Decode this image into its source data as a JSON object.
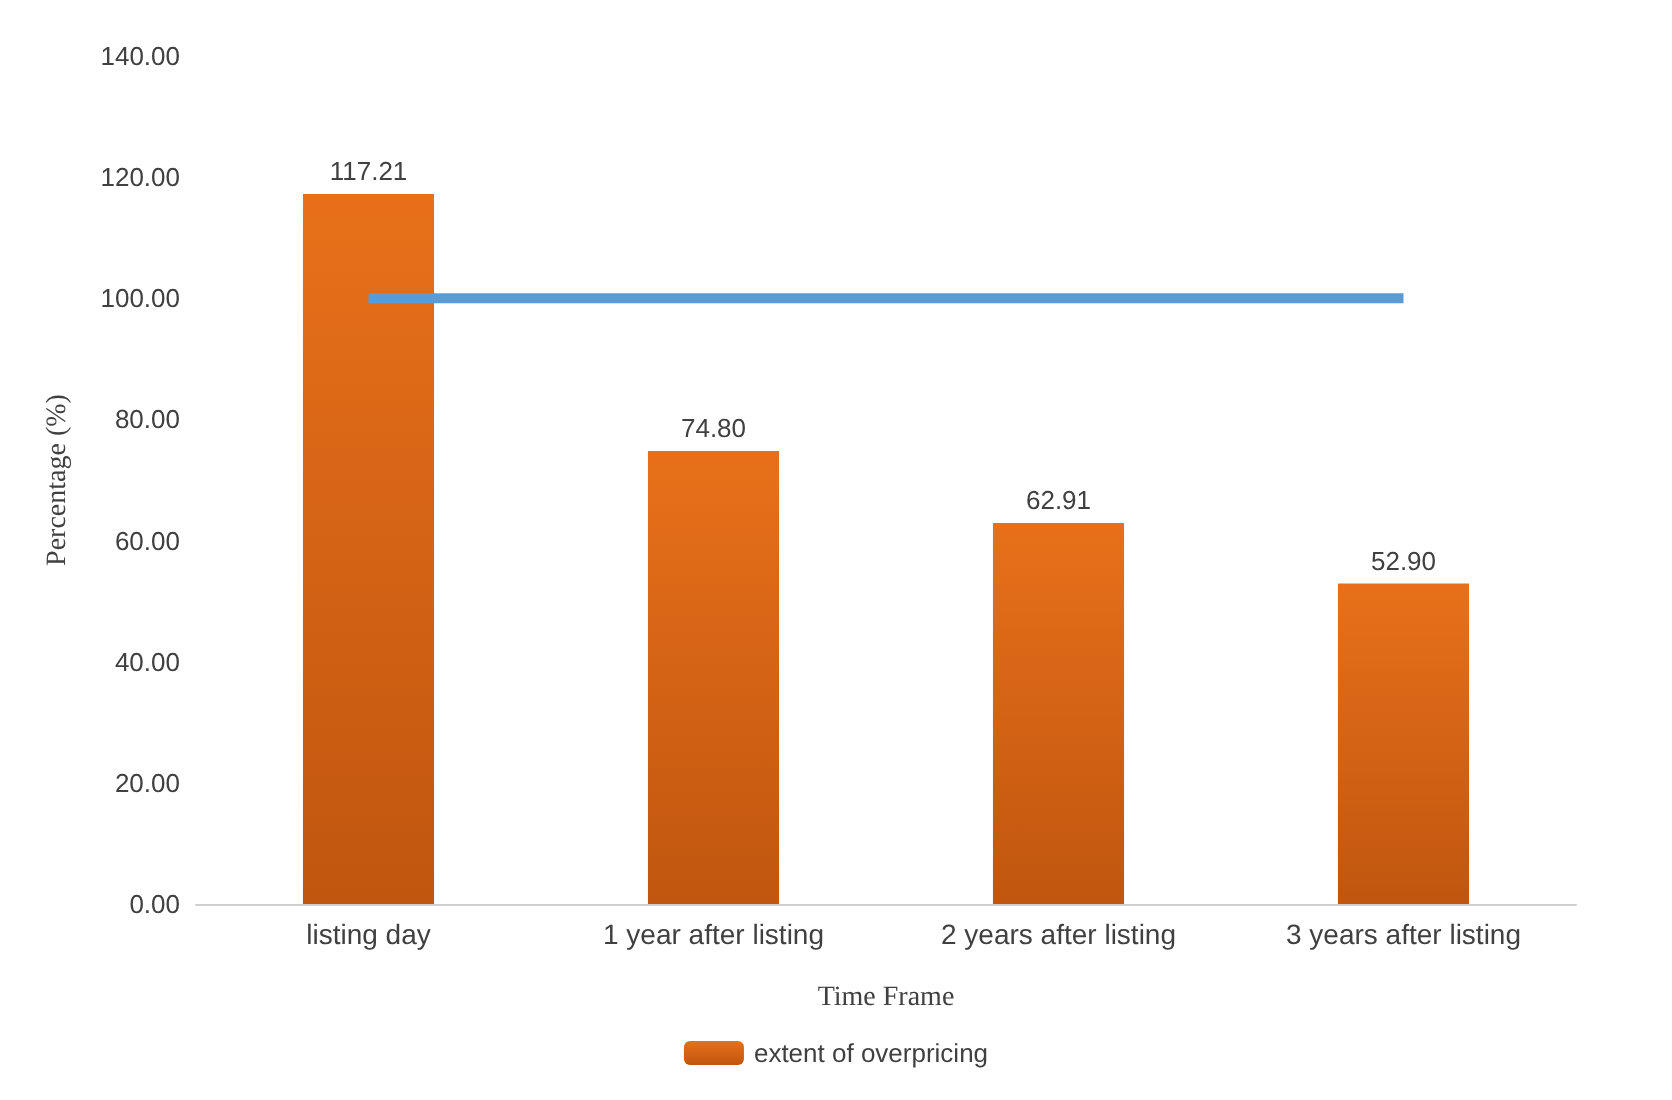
{
  "chart_data": {
    "type": "bar",
    "xlabel": "Time Frame",
    "ylabel": "Percentage (%)",
    "categories": [
      "listing day",
      "1 year after listing",
      "2 years after listing",
      "3 years after listing"
    ],
    "series": [
      {
        "name": "extent of overpricing",
        "color": "#e8701a",
        "values": [
          117.21,
          74.8,
          62.91,
          52.9
        ],
        "value_labels": [
          "117.21",
          "74.80",
          "62.91",
          "52.90"
        ]
      },
      {
        "type": "line",
        "color": "#5b9bd5",
        "values": [
          100,
          100,
          100,
          100
        ],
        "marker": "none",
        "line_style": "solid"
      }
    ],
    "ylim": [
      0,
      140
    ],
    "yticks": [
      {
        "value": 0,
        "label": "0.00"
      },
      {
        "value": 20,
        "label": "20.00"
      },
      {
        "value": 40,
        "label": "40.00"
      },
      {
        "value": 60,
        "label": "60.00"
      },
      {
        "value": 80,
        "label": "80.00"
      },
      {
        "value": 100,
        "label": "100.00"
      },
      {
        "value": 120,
        "label": "120.00"
      },
      {
        "value": 140,
        "label": "140.00"
      }
    ],
    "grid": false,
    "legend": "bottom"
  }
}
